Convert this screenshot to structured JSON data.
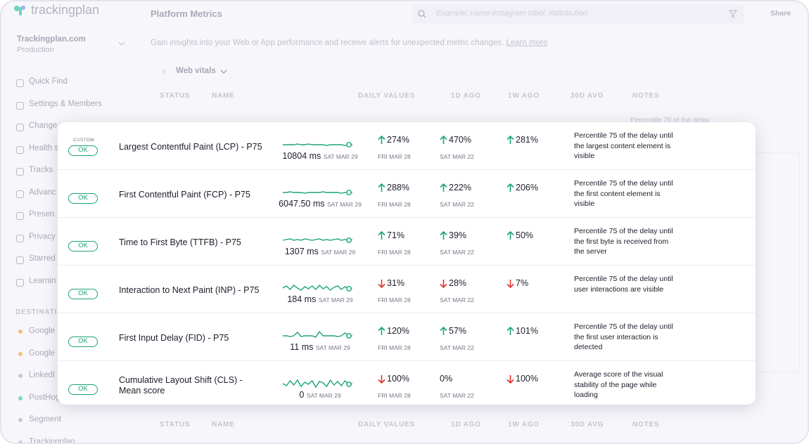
{
  "app": {
    "logo": "trackingplan",
    "workspace": {
      "name": "Trackingplan.com",
      "env": "Production"
    },
    "sidebar": {
      "items": [
        "Quick Find",
        "Settings & Members",
        "Change",
        "Health s",
        "Tracks",
        "Advanc",
        "Presen",
        "Privacy",
        "Starred",
        "Learnin"
      ],
      "section": "DESTINATI",
      "destinations": [
        {
          "name": "Google",
          "color": "#f2c27a"
        },
        {
          "name": "Google",
          "color": "#f2c27a"
        },
        {
          "name": "LinkedI",
          "color": "#c9c9d4"
        },
        {
          "name": "PostHog",
          "color": "#7fd6c2"
        },
        {
          "name": "Segment",
          "color": "#c9c9d4"
        },
        {
          "name": "Trackingplan",
          "color": "#c9c9d4"
        }
      ]
    }
  },
  "header": {
    "title": "Platform Metrics",
    "search_placeholder": "Example: name:instagram label: #attribution",
    "share": "Share"
  },
  "intro": {
    "text": "Gain insights into your Web or App performance and receive alerts for unexpected metric changes.",
    "link": "Learn more"
  },
  "group": {
    "count": "6",
    "name": "Web vitals"
  },
  "table": {
    "headers": [
      "STATUS",
      "NAME",
      "DAILY VALUES",
      "1D AGO",
      "1W AGO",
      "30D AVG",
      "NOTES"
    ],
    "peek": "Percentile 75 of the delay",
    "rows": [
      {
        "badge": "CUSTOM",
        "status": "OK",
        "name": "Largest Contentful Paint (LCP) - P75",
        "value": "10804 ms",
        "date": "SAT MAR 29",
        "d1": "274%",
        "d1_trend": "up",
        "d1_date": "FRI MAR 28",
        "w1": "470%",
        "w1_trend": "up",
        "w1_date": "SAT MAR 22",
        "avg": "281%",
        "avg_trend": "up",
        "notes": "Percentile 75 of the delay until the largest content element is visible"
      },
      {
        "status": "OK",
        "name": "First Contentful Paint (FCP) - P75",
        "value": "6047.50 ms",
        "date": "SAT MAR 29",
        "d1": "288%",
        "d1_trend": "up",
        "d1_date": "FRI MAR 28",
        "w1": "222%",
        "w1_trend": "up",
        "w1_date": "SAT MAR 22",
        "avg": "206%",
        "avg_trend": "up",
        "notes": "Percentile 75 of the delay until the first content element is visible"
      },
      {
        "status": "OK",
        "name": "Time to First Byte (TTFB) - P75",
        "value": "1307 ms",
        "date": "SAT MAR 29",
        "d1": "71%",
        "d1_trend": "up",
        "d1_date": "FRI MAR 28",
        "w1": "39%",
        "w1_trend": "up",
        "w1_date": "SAT MAR 22",
        "avg": "50%",
        "avg_trend": "up",
        "notes": "Percentile 75 of the delay until the first byte is received from the server"
      },
      {
        "status": "OK",
        "name": "Interaction to Next Paint (INP) - P75",
        "value": "184 ms",
        "date": "SAT MAR 29",
        "d1": "31%",
        "d1_trend": "down",
        "d1_date": "FRI MAR 28",
        "w1": "28%",
        "w1_trend": "down",
        "w1_date": "SAT MAR 22",
        "avg": "7%",
        "avg_trend": "down",
        "notes": "Percentile 75 of the delay until user interactions are visible"
      },
      {
        "status": "OK",
        "name": "First Input Delay (FID) - P75",
        "value": "11 ms",
        "date": "SAT MAR 29",
        "d1": "120%",
        "d1_trend": "up",
        "d1_date": "FRI MAR 28",
        "w1": "57%",
        "w1_trend": "up",
        "w1_date": "SAT MAR 22",
        "avg": "101%",
        "avg_trend": "up",
        "notes": "Percentile 75 of the delay until the first user interaction is detected"
      },
      {
        "status": "OK",
        "name": "Cumulative Layout Shift (CLS) - Mean score",
        "value": "0",
        "date": "SAT MAR 29",
        "d1": "100%",
        "d1_trend": "down",
        "d1_date": "FRI MAR 28",
        "w1": "0%",
        "w1_trend": "none",
        "w1_date": "SAT MAR 22",
        "avg": "100%",
        "avg_trend": "down",
        "notes": "Average score of the visual stability of the page while loading"
      }
    ]
  }
}
